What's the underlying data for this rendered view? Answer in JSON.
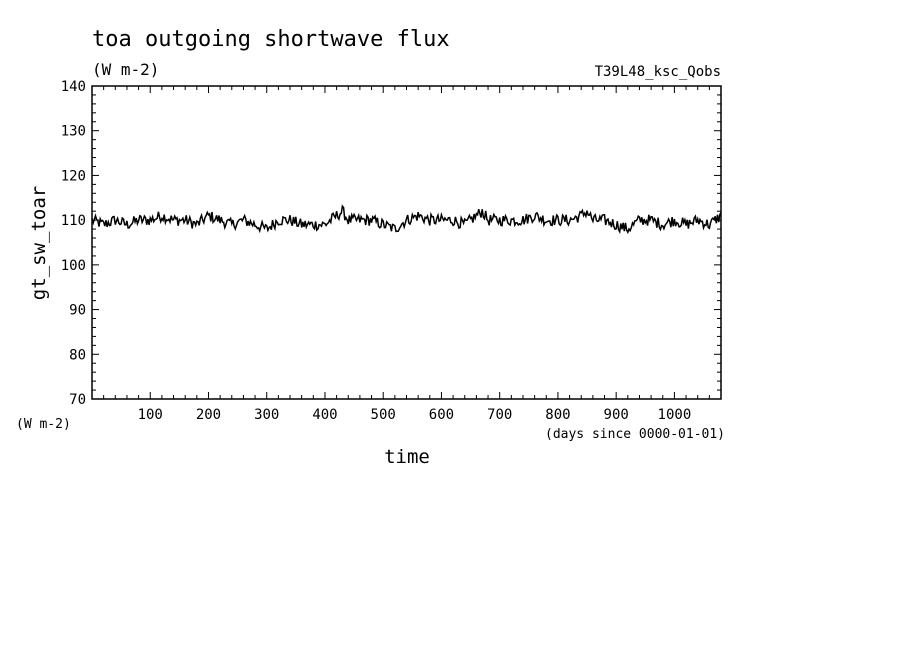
{
  "chart_data": {
    "type": "line",
    "title": "toa outgoing shortwave flux",
    "subtitle": "(W m-2)",
    "run_label": "T39L48_ksc_Qobs",
    "xlabel": "time",
    "x_units": "(days since 0000-01-01)",
    "ylabel": "gt_sw_toar",
    "y_units": "(W m-2)",
    "xlim": [
      0,
      1080
    ],
    "ylim": [
      70,
      140
    ],
    "x_ticks": [
      100,
      200,
      300,
      400,
      500,
      600,
      700,
      800,
      900,
      1000
    ],
    "y_ticks": [
      70,
      80,
      90,
      100,
      110,
      120,
      130,
      140
    ],
    "grid": false,
    "series": [
      {
        "name": "",
        "color": "#000000",
        "x": [
          0,
          20,
          40,
          60,
          80,
          100,
          120,
          140,
          160,
          180,
          200,
          220,
          240,
          260,
          280,
          300,
          320,
          340,
          360,
          380,
          400,
          420,
          430,
          440,
          460,
          480,
          500,
          520,
          540,
          560,
          580,
          600,
          620,
          640,
          660,
          670,
          680,
          700,
          720,
          740,
          760,
          780,
          800,
          820,
          840,
          850,
          860,
          880,
          900,
          920,
          940,
          960,
          980,
          1000,
          1020,
          1040,
          1060,
          1080
        ],
        "y": [
          110,
          109,
          110,
          109,
          110,
          110,
          111,
          110,
          110,
          109,
          111,
          110,
          109,
          110,
          109,
          108,
          110,
          110,
          109,
          109,
          109,
          111,
          112,
          110,
          110,
          110,
          109,
          108,
          110,
          111,
          110,
          110,
          110,
          109,
          111,
          112,
          110,
          110,
          110,
          110,
          111,
          110,
          110,
          110,
          111,
          112,
          110,
          110,
          109,
          108,
          110,
          110,
          109,
          110,
          109,
          110,
          109,
          111
        ]
      }
    ]
  }
}
